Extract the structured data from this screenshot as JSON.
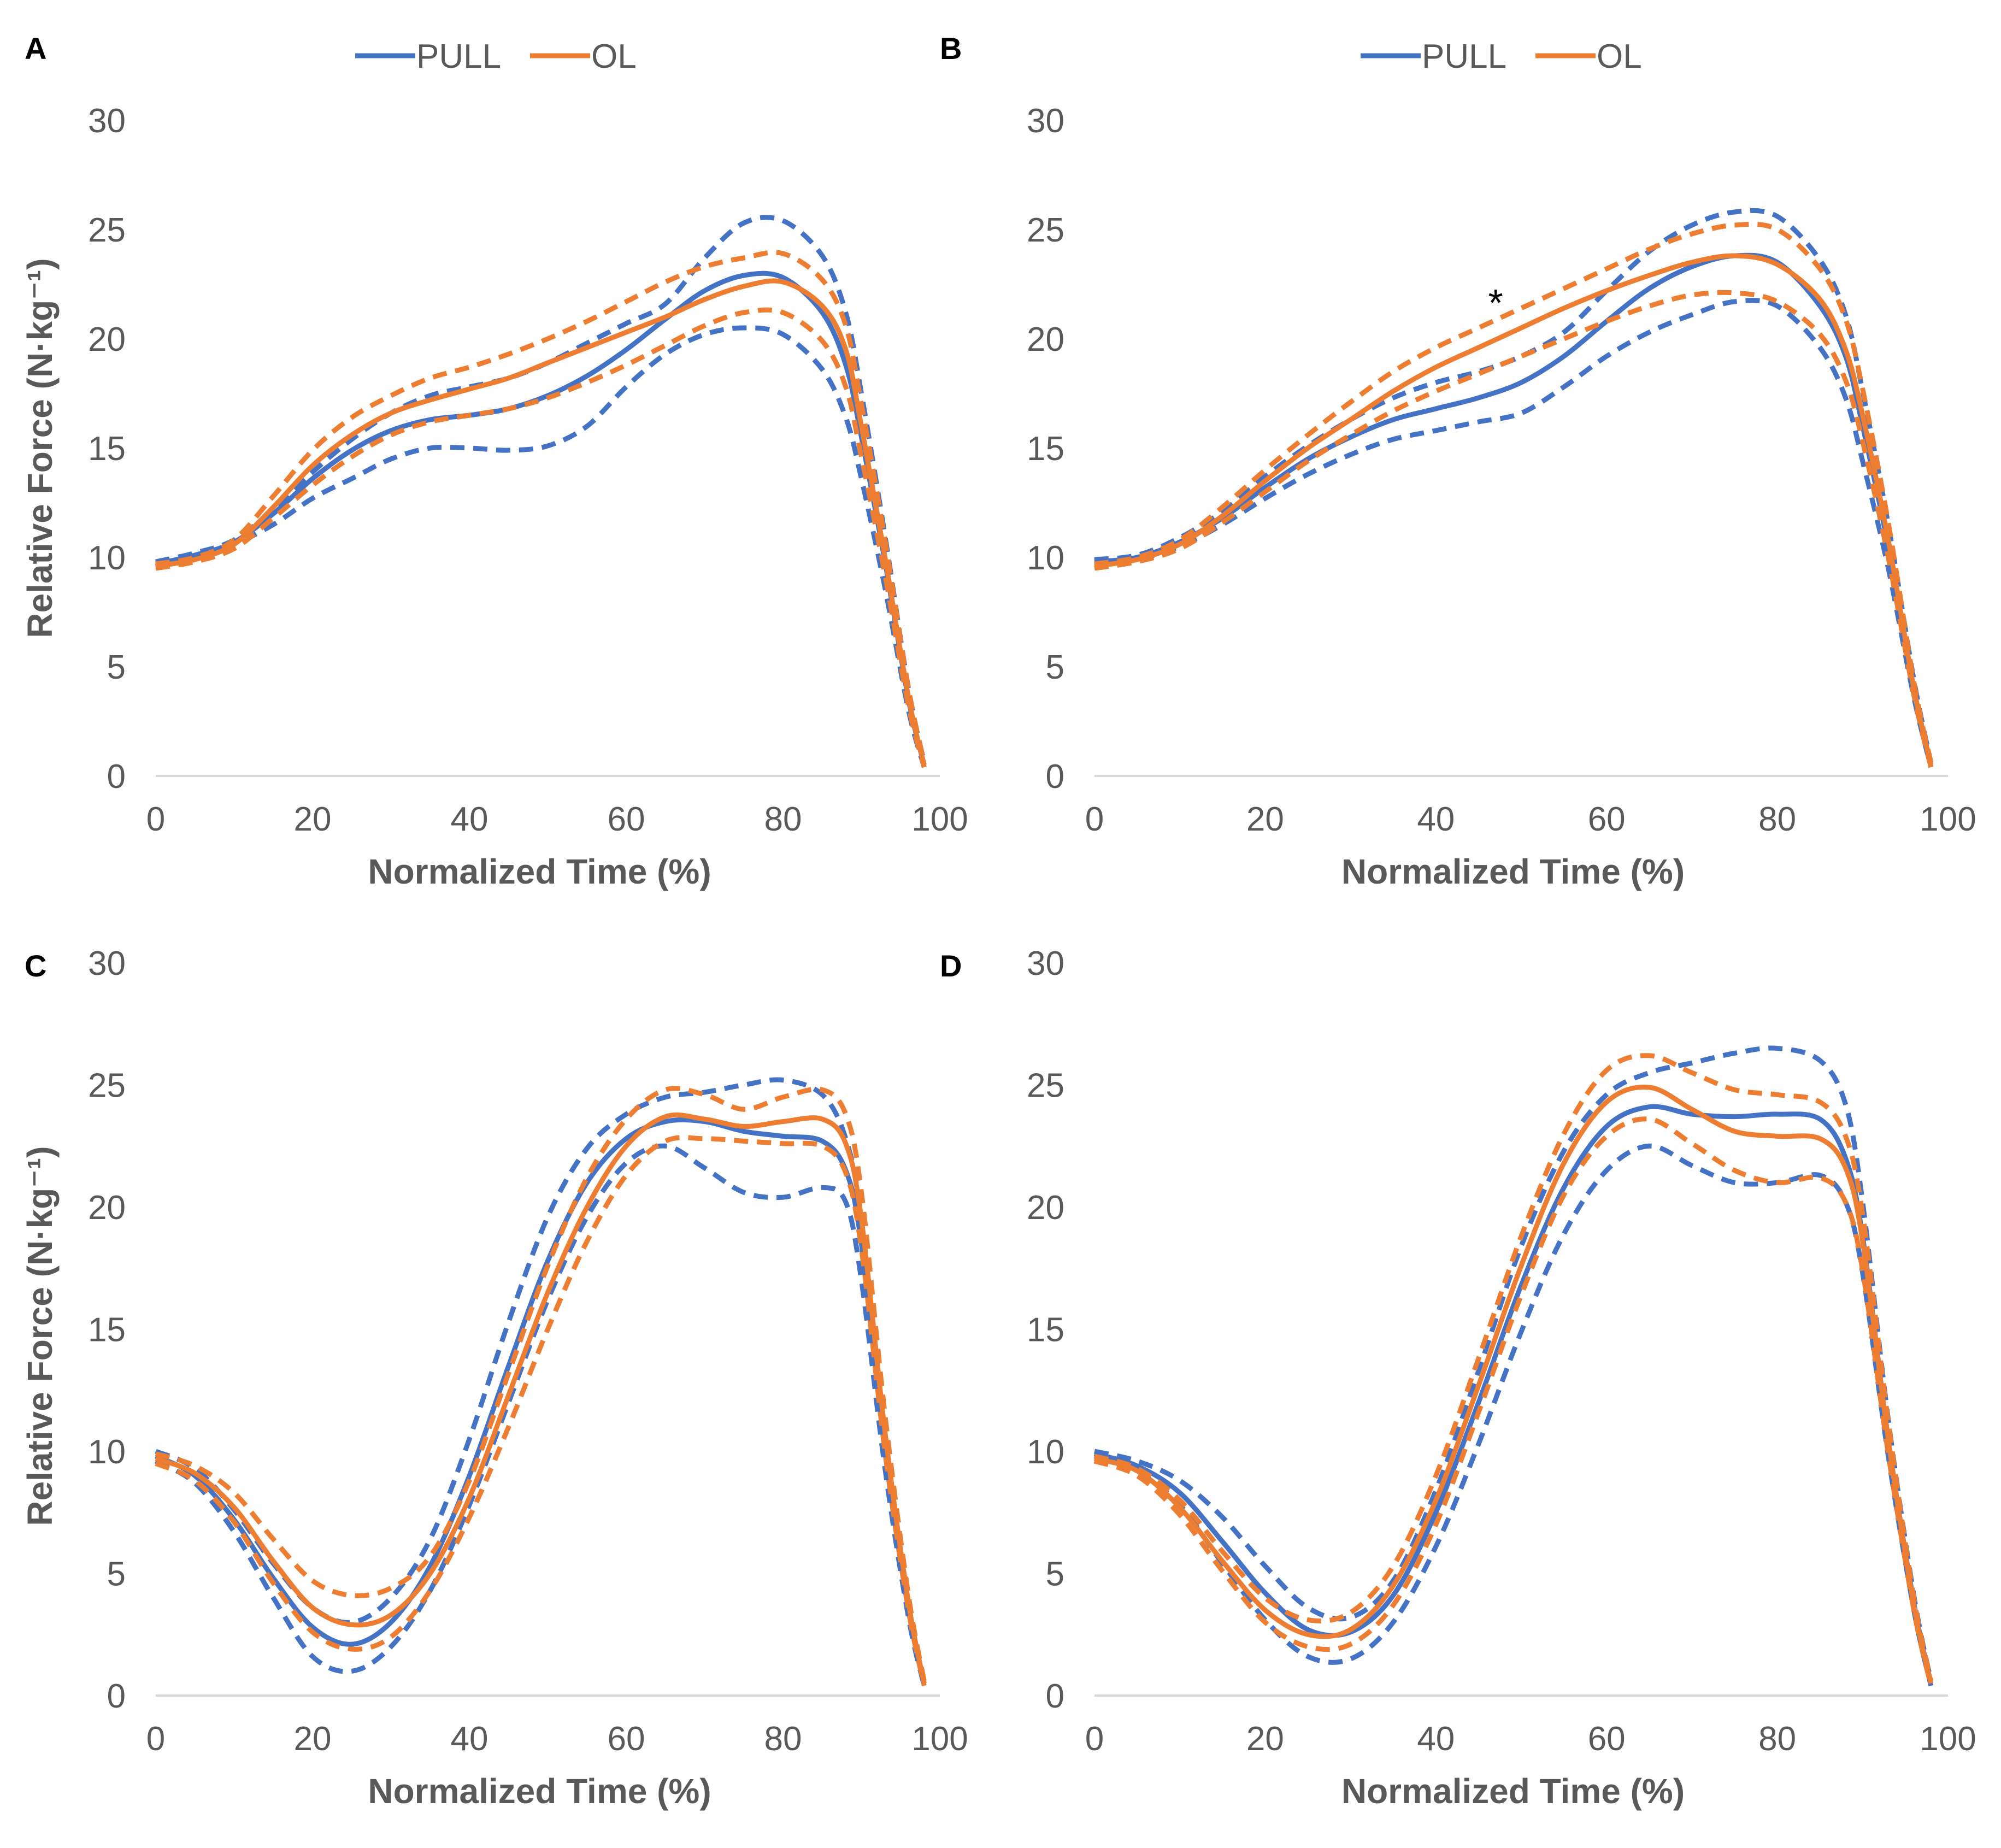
{
  "colors": {
    "pull": "#4472C4",
    "ol": "#ED7D31",
    "axis": "#D9D9D9",
    "text": "#595959"
  },
  "chart_data": [
    {
      "panel": "A",
      "type": "line",
      "xlabel": "Normalized Time (%)",
      "ylabel": "Relative Force (N·kg⁻¹)",
      "xlim": [
        0,
        100
      ],
      "ylim": [
        0,
        30
      ],
      "xticks": [
        "0",
        "20",
        "40",
        "60",
        "80",
        "100"
      ],
      "yticks": [
        "0",
        "5",
        "10",
        "15",
        "20",
        "25",
        "30"
      ],
      "legend": [
        "PULL",
        "OL"
      ],
      "legend_position": "top",
      "x": [
        0,
        5,
        10,
        15,
        20,
        25,
        30,
        35,
        40,
        45,
        50,
        55,
        60,
        65,
        70,
        75,
        80,
        85,
        88,
        90,
        93,
        96,
        98
      ],
      "series": [
        {
          "name": "PULL",
          "style": "solid",
          "values": [
            9.7,
            10.1,
            10.7,
            12.0,
            13.6,
            14.9,
            15.8,
            16.3,
            16.5,
            16.8,
            17.4,
            18.3,
            19.5,
            20.9,
            22.2,
            22.9,
            22.8,
            21.2,
            18.8,
            15.5,
            9.8,
            3.5,
            0.5
          ]
        },
        {
          "name": "PULL upper",
          "style": "dashed",
          "values": [
            9.8,
            10.2,
            10.8,
            12.2,
            13.9,
            15.4,
            16.6,
            17.4,
            17.8,
            18.2,
            18.9,
            19.8,
            20.7,
            21.6,
            23.7,
            25.3,
            25.4,
            23.8,
            21.2,
            17.5,
            11.0,
            4.0,
            0.6
          ]
        },
        {
          "name": "PULL lower",
          "style": "dashed",
          "values": [
            9.6,
            10.0,
            10.6,
            11.5,
            12.7,
            13.6,
            14.5,
            15.0,
            15.0,
            14.9,
            15.1,
            16.0,
            17.8,
            19.3,
            20.2,
            20.5,
            20.2,
            18.6,
            16.4,
            13.6,
            8.6,
            3.0,
            0.4
          ]
        },
        {
          "name": "OL",
          "style": "solid",
          "values": [
            9.6,
            9.9,
            10.6,
            12.3,
            14.2,
            15.6,
            16.6,
            17.2,
            17.7,
            18.2,
            18.9,
            19.6,
            20.3,
            21.0,
            21.8,
            22.4,
            22.6,
            21.5,
            19.5,
            16.0,
            10.0,
            3.6,
            0.5
          ]
        },
        {
          "name": "OL upper",
          "style": "dashed",
          "values": [
            9.7,
            10.0,
            10.8,
            12.8,
            14.9,
            16.4,
            17.4,
            18.2,
            18.7,
            19.3,
            20.0,
            20.8,
            21.7,
            22.6,
            23.3,
            23.7,
            23.9,
            22.7,
            20.6,
            17.0,
            10.8,
            4.0,
            0.6
          ]
        },
        {
          "name": "OL lower",
          "style": "dashed",
          "values": [
            9.5,
            9.8,
            10.4,
            11.8,
            13.3,
            14.6,
            15.6,
            16.2,
            16.5,
            16.8,
            17.3,
            18.0,
            18.8,
            19.7,
            20.6,
            21.2,
            21.2,
            19.9,
            17.8,
            14.6,
            9.2,
            3.2,
            0.4
          ]
        }
      ]
    },
    {
      "panel": "B",
      "type": "line",
      "xlabel": "Normalized Time (%)",
      "ylabel": "",
      "xlim": [
        0,
        100
      ],
      "ylim": [
        0,
        30
      ],
      "xticks": [
        "0",
        "20",
        "40",
        "60",
        "80",
        "100"
      ],
      "yticks": [
        "0",
        "5",
        "10",
        "15",
        "20",
        "25",
        "30"
      ],
      "legend": [
        "PULL",
        "OL"
      ],
      "legend_position": "top",
      "annotation": {
        "text": "*",
        "x": 47,
        "y": 22
      },
      "x": [
        0,
        5,
        10,
        15,
        20,
        25,
        30,
        35,
        40,
        45,
        50,
        55,
        60,
        65,
        70,
        75,
        80,
        85,
        88,
        90,
        93,
        96,
        98
      ],
      "series": [
        {
          "name": "PULL",
          "style": "solid",
          "values": [
            9.8,
            10.0,
            10.7,
            11.8,
            13.2,
            14.5,
            15.5,
            16.3,
            16.8,
            17.3,
            18.0,
            19.2,
            20.8,
            22.3,
            23.3,
            23.8,
            23.5,
            21.5,
            19.2,
            16.0,
            10.5,
            4.0,
            0.5
          ]
        },
        {
          "name": "PULL upper",
          "style": "dashed",
          "values": [
            9.9,
            10.1,
            10.9,
            12.1,
            13.7,
            15.1,
            16.3,
            17.3,
            18.0,
            18.5,
            19.2,
            20.3,
            22.2,
            24.0,
            25.2,
            25.8,
            25.6,
            23.6,
            21.1,
            17.6,
            11.5,
            4.4,
            0.6
          ]
        },
        {
          "name": "PULL lower",
          "style": "dashed",
          "values": [
            9.7,
            9.9,
            10.5,
            11.5,
            12.7,
            13.8,
            14.7,
            15.4,
            15.8,
            16.2,
            16.6,
            17.8,
            19.2,
            20.3,
            21.1,
            21.7,
            21.5,
            19.6,
            17.3,
            14.4,
            9.5,
            3.6,
            0.4
          ]
        },
        {
          "name": "OL",
          "style": "solid",
          "values": [
            9.6,
            9.9,
            10.6,
            11.9,
            13.5,
            15.0,
            16.3,
            17.6,
            18.7,
            19.6,
            20.5,
            21.4,
            22.2,
            22.9,
            23.5,
            23.8,
            23.4,
            21.8,
            19.5,
            16.5,
            10.8,
            4.0,
            0.5
          ]
        },
        {
          "name": "OL upper",
          "style": "dashed",
          "values": [
            9.7,
            10.0,
            10.8,
            12.3,
            14.0,
            15.6,
            17.1,
            18.5,
            19.6,
            20.5,
            21.4,
            22.3,
            23.2,
            24.1,
            24.8,
            25.2,
            25.0,
            23.2,
            20.9,
            17.7,
            11.6,
            4.3,
            0.6
          ]
        },
        {
          "name": "OL lower",
          "style": "dashed",
          "values": [
            9.5,
            9.8,
            10.4,
            11.6,
            13.0,
            14.4,
            15.6,
            16.7,
            17.6,
            18.4,
            19.2,
            20.0,
            20.8,
            21.5,
            22.0,
            22.1,
            21.7,
            20.2,
            18.1,
            15.3,
            10.0,
            3.7,
            0.4
          ]
        }
      ]
    },
    {
      "panel": "C",
      "type": "line",
      "xlabel": "Normalized Time (%)",
      "ylabel": "Relative Force (N·kg⁻¹)",
      "xlim": [
        0,
        100
      ],
      "ylim": [
        0,
        30
      ],
      "xticks": [
        "0",
        "20",
        "40",
        "60",
        "80",
        "100"
      ],
      "yticks": [
        "0",
        "5",
        "10",
        "15",
        "20",
        "25",
        "30"
      ],
      "x": [
        0,
        5,
        10,
        15,
        20,
        25,
        30,
        35,
        40,
        45,
        50,
        55,
        60,
        65,
        70,
        75,
        80,
        85,
        88,
        90,
        93,
        96,
        98
      ],
      "series": [
        {
          "name": "PULL",
          "style": "solid",
          "values": [
            9.8,
            9.0,
            7.2,
            4.8,
            2.8,
            2.1,
            3.0,
            5.3,
            9.0,
            13.5,
            17.8,
            21.0,
            22.8,
            23.5,
            23.5,
            23.1,
            22.9,
            22.7,
            21.5,
            18.5,
            10.0,
            3.5,
            0.5
          ]
        },
        {
          "name": "PULL upper",
          "style": "dashed",
          "values": [
            10.0,
            9.3,
            7.6,
            5.4,
            3.6,
            3.0,
            4.0,
            6.4,
            10.5,
            15.3,
            19.6,
            22.4,
            23.8,
            24.5,
            24.7,
            25.0,
            25.2,
            24.6,
            22.8,
            19.5,
            10.6,
            3.8,
            0.5
          ]
        },
        {
          "name": "PULL lower",
          "style": "dashed",
          "values": [
            9.6,
            8.7,
            6.7,
            4.0,
            1.6,
            1.0,
            2.0,
            4.3,
            7.8,
            12.0,
            16.2,
            19.6,
            21.8,
            22.5,
            21.6,
            20.6,
            20.4,
            20.8,
            20.2,
            17.0,
            9.3,
            3.2,
            0.4
          ]
        },
        {
          "name": "OL",
          "style": "solid",
          "values": [
            9.7,
            9.1,
            7.7,
            5.5,
            3.6,
            2.9,
            3.3,
            5.0,
            8.1,
            12.3,
            16.5,
            20.0,
            22.5,
            23.7,
            23.6,
            23.3,
            23.5,
            23.6,
            22.6,
            19.5,
            10.8,
            3.8,
            0.5
          ]
        },
        {
          "name": "OL upper",
          "style": "dashed",
          "values": [
            9.9,
            9.4,
            8.3,
            6.4,
            4.7,
            4.1,
            4.4,
            5.7,
            8.8,
            13.2,
            17.6,
            21.2,
            23.6,
            24.8,
            24.6,
            24.0,
            24.5,
            24.8,
            23.8,
            20.6,
            11.5,
            4.1,
            0.6
          ]
        },
        {
          "name": "OL lower",
          "style": "dashed",
          "values": [
            9.5,
            8.8,
            7.1,
            4.6,
            2.6,
            1.9,
            2.4,
            4.3,
            7.3,
            11.0,
            15.0,
            18.6,
            21.3,
            22.7,
            22.8,
            22.7,
            22.6,
            22.5,
            21.4,
            18.3,
            10.0,
            3.5,
            0.4
          ]
        }
      ]
    },
    {
      "panel": "D",
      "type": "line",
      "xlabel": "Normalized Time (%)",
      "ylabel": "",
      "xlim": [
        0,
        100
      ],
      "ylim": [
        0,
        30
      ],
      "xticks": [
        "0",
        "20",
        "40",
        "60",
        "80",
        "100"
      ],
      "yticks": [
        "0",
        "5",
        "10",
        "15",
        "20",
        "25",
        "30"
      ],
      "x": [
        0,
        5,
        10,
        15,
        20,
        25,
        30,
        35,
        40,
        45,
        50,
        55,
        60,
        65,
        70,
        75,
        80,
        85,
        88,
        90,
        93,
        96,
        98
      ],
      "series": [
        {
          "name": "PULL",
          "style": "solid",
          "values": [
            9.9,
            9.4,
            8.3,
            6.3,
            4.2,
            2.7,
            2.6,
            4.1,
            7.5,
            12.0,
            16.8,
            20.8,
            23.3,
            24.1,
            23.8,
            23.7,
            23.8,
            23.6,
            22.0,
            18.8,
            10.5,
            3.8,
            0.5
          ]
        },
        {
          "name": "PULL upper",
          "style": "dashed",
          "values": [
            10.0,
            9.6,
            8.8,
            7.3,
            5.3,
            3.6,
            3.2,
            4.7,
            8.4,
            13.3,
            18.4,
            22.3,
            24.6,
            25.5,
            25.9,
            26.3,
            26.5,
            26.0,
            24.2,
            20.2,
            11.3,
            4.1,
            0.6
          ]
        },
        {
          "name": "PULL lower",
          "style": "dashed",
          "values": [
            9.8,
            9.2,
            7.8,
            5.4,
            3.1,
            1.6,
            1.5,
            3.0,
            6.1,
            10.3,
            14.9,
            18.9,
            21.5,
            22.5,
            21.7,
            21.0,
            21.0,
            21.3,
            20.2,
            17.3,
            9.8,
            3.5,
            0.4
          ]
        },
        {
          "name": "OL",
          "style": "solid",
          "values": [
            9.7,
            9.2,
            7.7,
            5.5,
            3.5,
            2.5,
            2.7,
            4.5,
            8.0,
            12.7,
            17.6,
            21.8,
            24.3,
            24.9,
            24.0,
            23.1,
            22.9,
            22.8,
            21.6,
            18.6,
            10.5,
            3.7,
            0.5
          ]
        },
        {
          "name": "OL upper",
          "style": "dashed",
          "values": [
            9.8,
            9.3,
            8.0,
            5.9,
            4.0,
            3.1,
            3.4,
            5.3,
            9.0,
            13.8,
            18.8,
            23.0,
            25.6,
            26.2,
            25.5,
            24.8,
            24.6,
            24.3,
            22.9,
            19.7,
            11.2,
            4.0,
            0.6
          ]
        },
        {
          "name": "OL lower",
          "style": "dashed",
          "values": [
            9.6,
            9.0,
            7.4,
            5.1,
            3.0,
            2.0,
            2.1,
            3.7,
            7.0,
            11.6,
            16.4,
            20.5,
            22.9,
            23.6,
            22.6,
            21.5,
            21.0,
            21.2,
            20.2,
            17.4,
            9.9,
            3.5,
            0.4
          ]
        }
      ]
    }
  ]
}
